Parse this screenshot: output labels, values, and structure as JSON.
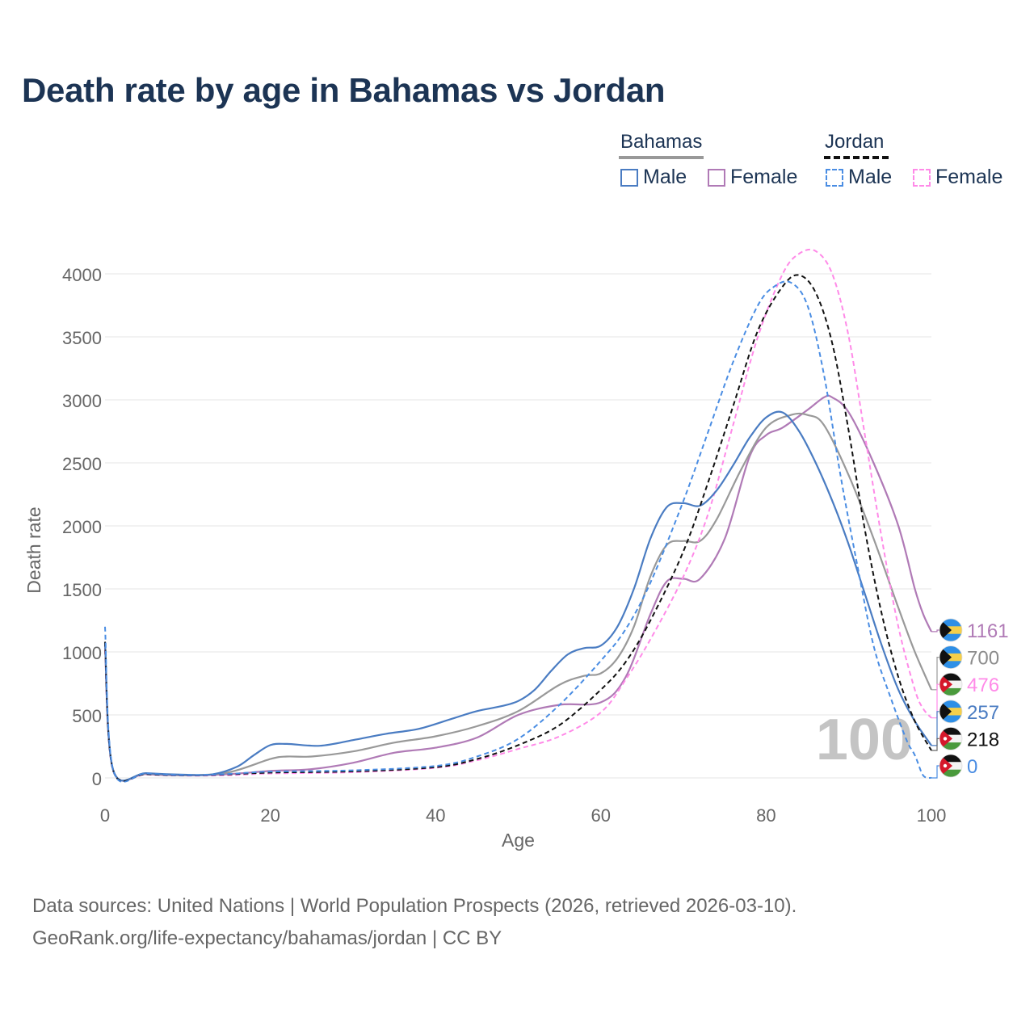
{
  "title": "Death rate by age in Bahamas vs Jordan",
  "legend": {
    "groups": [
      {
        "name": "Bahamas",
        "line_color": "#999999",
        "line_style": "solid",
        "items": [
          {
            "label": "Male",
            "color": "#4a7cc2",
            "style": "solid"
          },
          {
            "label": "Female",
            "color": "#b07ab6",
            "style": "solid"
          }
        ]
      },
      {
        "name": "Jordan",
        "line_color": "#111111",
        "line_style": "dashed",
        "items": [
          {
            "label": "Male",
            "color": "#4a8de3",
            "style": "dashed"
          },
          {
            "label": "Female",
            "color": "#ff8ae8",
            "style": "dashed"
          }
        ]
      }
    ]
  },
  "watermark": "100",
  "footer": {
    "line1": "Data sources: United Nations | World Population Prospects (2026, retrieved 2026-03-10).",
    "line2": "GeoRank.org/life-expectancy/bahamas/jordan | CC BY"
  },
  "chart_data": {
    "type": "line",
    "xlabel": "Age",
    "ylabel": "Death rate",
    "xlim": [
      0,
      100
    ],
    "ylim": [
      0,
      4000
    ],
    "xticks": [
      0,
      20,
      40,
      60,
      80,
      100
    ],
    "yticks": [
      0,
      500,
      1000,
      1500,
      2000,
      2500,
      3000,
      3500,
      4000
    ],
    "grid": true,
    "series": [
      {
        "name": "Bahamas Female",
        "country": "Bahamas",
        "color": "#b07ab6",
        "style": "solid",
        "end_value": 1161,
        "points": [
          [
            0,
            1050
          ],
          [
            1,
            60
          ],
          [
            5,
            30
          ],
          [
            10,
            20
          ],
          [
            15,
            30
          ],
          [
            20,
            55
          ],
          [
            25,
            70
          ],
          [
            30,
            120
          ],
          [
            35,
            200
          ],
          [
            40,
            240
          ],
          [
            45,
            320
          ],
          [
            50,
            500
          ],
          [
            55,
            580
          ],
          [
            60,
            600
          ],
          [
            63,
            800
          ],
          [
            66,
            1300
          ],
          [
            68,
            1560
          ],
          [
            70,
            1580
          ],
          [
            72,
            1580
          ],
          [
            75,
            1900
          ],
          [
            78,
            2550
          ],
          [
            80,
            2720
          ],
          [
            82,
            2780
          ],
          [
            85,
            2920
          ],
          [
            87,
            3020
          ],
          [
            88,
            3020
          ],
          [
            90,
            2900
          ],
          [
            93,
            2500
          ],
          [
            96,
            2000
          ],
          [
            98,
            1500
          ],
          [
            99,
            1300
          ],
          [
            100,
            1161
          ]
        ]
      },
      {
        "name": "Bahamas Total",
        "country": "Bahamas",
        "color": "#999999",
        "style": "solid",
        "end_value": 700,
        "points": [
          [
            0,
            1070
          ],
          [
            1,
            60
          ],
          [
            5,
            35
          ],
          [
            10,
            22
          ],
          [
            15,
            45
          ],
          [
            20,
            150
          ],
          [
            22,
            170
          ],
          [
            25,
            170
          ],
          [
            30,
            210
          ],
          [
            35,
            280
          ],
          [
            40,
            330
          ],
          [
            45,
            410
          ],
          [
            50,
            530
          ],
          [
            55,
            740
          ],
          [
            58,
            810
          ],
          [
            60,
            830
          ],
          [
            62,
            950
          ],
          [
            64,
            1200
          ],
          [
            66,
            1600
          ],
          [
            68,
            1850
          ],
          [
            70,
            1880
          ],
          [
            72,
            1880
          ],
          [
            74,
            2050
          ],
          [
            77,
            2450
          ],
          [
            80,
            2780
          ],
          [
            83,
            2880
          ],
          [
            85,
            2880
          ],
          [
            87,
            2800
          ],
          [
            90,
            2400
          ],
          [
            93,
            1900
          ],
          [
            96,
            1350
          ],
          [
            98,
            1000
          ],
          [
            100,
            700
          ]
        ]
      },
      {
        "name": "Jordan Female",
        "country": "Jordan",
        "color": "#ff8ae8",
        "style": "dashed",
        "end_value": 476,
        "points": [
          [
            0,
            1020
          ],
          [
            1,
            55
          ],
          [
            5,
            28
          ],
          [
            10,
            18
          ],
          [
            15,
            22
          ],
          [
            20,
            35
          ],
          [
            30,
            45
          ],
          [
            40,
            80
          ],
          [
            45,
            140
          ],
          [
            50,
            230
          ],
          [
            55,
            330
          ],
          [
            60,
            520
          ],
          [
            63,
            780
          ],
          [
            66,
            1100
          ],
          [
            70,
            1600
          ],
          [
            73,
            2100
          ],
          [
            76,
            2800
          ],
          [
            79,
            3500
          ],
          [
            82,
            4000
          ],
          [
            84,
            4160
          ],
          [
            86,
            4180
          ],
          [
            88,
            4000
          ],
          [
            90,
            3500
          ],
          [
            92,
            2700
          ],
          [
            94,
            1900
          ],
          [
            96,
            1200
          ],
          [
            98,
            700
          ],
          [
            99,
            550
          ],
          [
            100,
            476
          ]
        ]
      },
      {
        "name": "Bahamas Male",
        "country": "Bahamas",
        "color": "#4a7cc2",
        "style": "solid",
        "end_value": 257,
        "points": [
          [
            0,
            1080
          ],
          [
            1,
            60
          ],
          [
            5,
            38
          ],
          [
            10,
            25
          ],
          [
            13,
            28
          ],
          [
            16,
            90
          ],
          [
            18,
            180
          ],
          [
            20,
            260
          ],
          [
            22,
            270
          ],
          [
            26,
            255
          ],
          [
            30,
            300
          ],
          [
            34,
            350
          ],
          [
            38,
            390
          ],
          [
            42,
            470
          ],
          [
            45,
            530
          ],
          [
            48,
            570
          ],
          [
            50,
            610
          ],
          [
            52,
            700
          ],
          [
            54,
            850
          ],
          [
            56,
            980
          ],
          [
            58,
            1030
          ],
          [
            60,
            1050
          ],
          [
            62,
            1200
          ],
          [
            64,
            1500
          ],
          [
            66,
            1900
          ],
          [
            68,
            2150
          ],
          [
            70,
            2180
          ],
          [
            72,
            2160
          ],
          [
            74,
            2280
          ],
          [
            76,
            2480
          ],
          [
            78,
            2700
          ],
          [
            80,
            2860
          ],
          [
            82,
            2900
          ],
          [
            84,
            2750
          ],
          [
            86,
            2500
          ],
          [
            88,
            2200
          ],
          [
            90,
            1850
          ],
          [
            92,
            1450
          ],
          [
            94,
            1050
          ],
          [
            96,
            700
          ],
          [
            98,
            450
          ],
          [
            100,
            257
          ]
        ]
      },
      {
        "name": "Jordan Total",
        "country": "Jordan",
        "color": "#111111",
        "style": "dashed",
        "end_value": 218,
        "points": [
          [
            0,
            1080
          ],
          [
            1,
            58
          ],
          [
            5,
            30
          ],
          [
            10,
            20
          ],
          [
            15,
            28
          ],
          [
            20,
            42
          ],
          [
            30,
            52
          ],
          [
            40,
            85
          ],
          [
            45,
            150
          ],
          [
            50,
            260
          ],
          [
            55,
            420
          ],
          [
            60,
            700
          ],
          [
            63,
            920
          ],
          [
            66,
            1250
          ],
          [
            70,
            1800
          ],
          [
            73,
            2350
          ],
          [
            76,
            2950
          ],
          [
            79,
            3550
          ],
          [
            82,
            3900
          ],
          [
            84,
            3990
          ],
          [
            86,
            3850
          ],
          [
            88,
            3450
          ],
          [
            90,
            2750
          ],
          [
            92,
            1950
          ],
          [
            94,
            1300
          ],
          [
            96,
            800
          ],
          [
            98,
            450
          ],
          [
            100,
            218
          ]
        ]
      },
      {
        "name": "Jordan Male",
        "country": "Jordan",
        "color": "#4a8de3",
        "style": "dashed",
        "end_value": 0,
        "points": [
          [
            0,
            1200
          ],
          [
            1,
            60
          ],
          [
            5,
            35
          ],
          [
            10,
            22
          ],
          [
            15,
            32
          ],
          [
            20,
            50
          ],
          [
            30,
            60
          ],
          [
            40,
            95
          ],
          [
            45,
            170
          ],
          [
            50,
            310
          ],
          [
            55,
            580
          ],
          [
            60,
            930
          ],
          [
            63,
            1180
          ],
          [
            66,
            1550
          ],
          [
            70,
            2200
          ],
          [
            73,
            2750
          ],
          [
            76,
            3300
          ],
          [
            79,
            3750
          ],
          [
            81,
            3900
          ],
          [
            83,
            3930
          ],
          [
            85,
            3750
          ],
          [
            87,
            3200
          ],
          [
            89,
            2400
          ],
          [
            91,
            1700
          ],
          [
            93,
            1050
          ],
          [
            95,
            650
          ],
          [
            97,
            300
          ],
          [
            98,
            180
          ],
          [
            99,
            20
          ],
          [
            100,
            0
          ]
        ]
      }
    ]
  }
}
